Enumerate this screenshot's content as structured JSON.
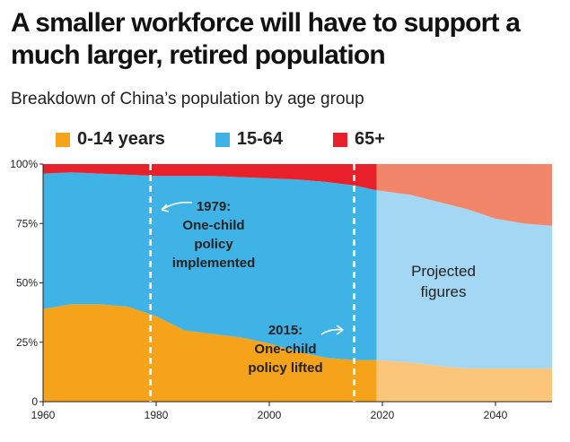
{
  "header": {
    "title": "A smaller workforce will have to support a much larger, retired population",
    "subtitle": "Breakdown of China’s population by age group"
  },
  "legend": [
    {
      "label": "0-14 years",
      "color": "#f5a31a"
    },
    {
      "label": "15-64",
      "color": "#3fb2e6"
    },
    {
      "label": "65+",
      "color": "#e8202a"
    }
  ],
  "annotations": {
    "one_child_1979": [
      "1979:",
      "One-child",
      "policy",
      "implemented"
    ],
    "one_child_2015": [
      "2015:",
      "One-child",
      "policy lifted"
    ],
    "projected": [
      "Projected",
      "figures"
    ]
  },
  "chart_data": {
    "type": "area",
    "stacked": true,
    "x": [
      1960,
      1965,
      1970,
      1975,
      1980,
      1985,
      1990,
      1995,
      2000,
      2005,
      2010,
      2015,
      2019,
      2025,
      2030,
      2035,
      2040,
      2045,
      2050
    ],
    "series": [
      {
        "name": "0-14 years",
        "color": "#f5a31a",
        "projected_color": "#fcc67a",
        "values": [
          39,
          41,
          41,
          40,
          36,
          30,
          28.5,
          27,
          24.5,
          21,
          18.5,
          17.5,
          17.5,
          16.5,
          15,
          14,
          14,
          14,
          14
        ]
      },
      {
        "name": "15-64",
        "color": "#3fb2e6",
        "projected_color": "#a3d7f3",
        "values": [
          57,
          55.5,
          55,
          55.5,
          59,
          65,
          66.5,
          67.5,
          69.5,
          72.5,
          74,
          73.5,
          71.5,
          70.5,
          69,
          67,
          63,
          61,
          60
        ]
      },
      {
        "name": "65+",
        "color": "#e8202a",
        "projected_color": "#f2866a",
        "values": [
          4,
          3.5,
          4,
          4.5,
          5,
          5,
          5,
          5.5,
          6,
          6.5,
          7.5,
          9,
          11,
          13,
          16,
          19,
          23,
          25,
          26
        ]
      }
    ],
    "projection_start": 2019,
    "markers": [
      1979,
      2015
    ],
    "xlim": [
      1960,
      2050
    ],
    "ylim": [
      0,
      100
    ],
    "xticks": [
      1960,
      1980,
      2000,
      2020,
      2040
    ],
    "yticks": [
      0,
      25,
      50,
      75,
      100
    ],
    "ytick_labels": [
      "0",
      "25%",
      "50%",
      "75%",
      "100%"
    ]
  }
}
